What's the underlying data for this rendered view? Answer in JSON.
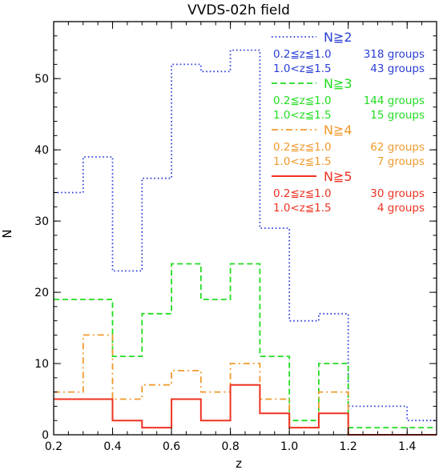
{
  "chart_data": {
    "type": "histogram-step",
    "title": "VVDS-02h field",
    "xlabel": "z",
    "ylabel": "N",
    "xlim": [
      0.2,
      1.5
    ],
    "ylim": [
      0,
      58
    ],
    "xticks": [
      0.2,
      0.4,
      0.6,
      0.8,
      1.0,
      1.2,
      1.4
    ],
    "xtick_labels": [
      "0.2",
      "0.4",
      "0.6",
      "0.8",
      "1.0",
      "1.2",
      "1.4"
    ],
    "yticks": [
      0,
      10,
      20,
      30,
      40,
      50
    ],
    "ytick_labels": [
      "0",
      "10",
      "20",
      "30",
      "40",
      "50"
    ],
    "bin_edges": [
      0.2,
      0.3,
      0.4,
      0.5,
      0.6,
      0.7,
      0.8,
      0.9,
      1.0,
      1.1,
      1.2,
      1.3,
      1.4,
      1.5
    ],
    "series": [
      {
        "name": "N≧2",
        "color": "#2b3fd6",
        "linestyle": "dotted",
        "values": [
          34,
          39,
          23,
          36,
          52,
          51,
          54,
          29,
          16,
          17,
          4,
          4,
          2
        ],
        "legend_lines": [
          [
            "0.2≦z≦1.0",
            "318 groups"
          ],
          [
            "1.0<z≦1.5",
            "43 groups"
          ]
        ]
      },
      {
        "name": "N≧3",
        "color": "#22dd22",
        "linestyle": "dashed",
        "values": [
          19,
          19,
          11,
          17,
          24,
          19,
          24,
          11,
          2,
          10,
          1,
          1,
          1
        ],
        "legend_lines": [
          [
            "0.2≦z≦1.0",
            "144 groups"
          ],
          [
            "1.0<z≦1.5",
            "15 groups"
          ]
        ]
      },
      {
        "name": "N≧4",
        "color": "#f09a2c",
        "linestyle": "dashdot",
        "values": [
          6,
          14,
          5,
          7,
          9,
          6,
          10,
          5,
          1,
          6,
          0,
          0,
          0
        ],
        "legend_lines": [
          [
            "0.2≦z≦1.0",
            "62 groups"
          ],
          [
            "1.0<z≦1.5",
            "7 groups"
          ]
        ]
      },
      {
        "name": "N≧5",
        "color": "#ee3322",
        "linestyle": "solid",
        "values": [
          5,
          5,
          2,
          1,
          5,
          2,
          7,
          3,
          1,
          3,
          0,
          0,
          0
        ],
        "legend_lines": [
          [
            "0.2≦z≦1.0",
            "30 groups"
          ],
          [
            "1.0<z≦1.5",
            "4 groups"
          ]
        ]
      }
    ],
    "legend_position": "top-right",
    "grid": false
  }
}
